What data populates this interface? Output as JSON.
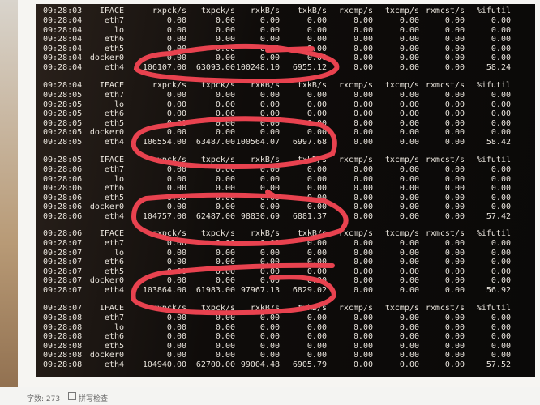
{
  "columns": [
    "IFACE",
    "rxpck/s",
    "txpck/s",
    "rxkB/s",
    "txkB/s",
    "rxcmp/s",
    "txcmp/s",
    "rxmcst/s",
    "%ifutil"
  ],
  "blocks": [
    {
      "header_time": "09:28:03",
      "rows": [
        [
          "09:28:04",
          "eth7",
          "0.00",
          "0.00",
          "0.00",
          "0.00",
          "0.00",
          "0.00",
          "0.00",
          "0.00"
        ],
        [
          "09:28:04",
          "lo",
          "0.00",
          "0.00",
          "0.00",
          "0.00",
          "0.00",
          "0.00",
          "0.00",
          "0.00"
        ],
        [
          "09:28:04",
          "eth6",
          "0.00",
          "0.00",
          "0.00",
          "0.00",
          "0.00",
          "0.00",
          "0.00",
          "0.00"
        ],
        [
          "09:28:04",
          "eth5",
          "0.00",
          "0.00",
          "0.00",
          "0.00",
          "0.00",
          "0.00",
          "0.00",
          "0.00"
        ],
        [
          "09:28:04",
          "docker0",
          "0.00",
          "0.00",
          "0.00",
          "0.00",
          "0.00",
          "0.00",
          "0.00",
          "0.00"
        ],
        [
          "09:28:04",
          "eth4",
          "106107.00",
          "63093.00",
          "100248.10",
          "6955.12",
          "0.00",
          "0.00",
          "0.00",
          "58.24"
        ]
      ]
    },
    {
      "header_time": "09:28:04",
      "rows": [
        [
          "09:28:05",
          "eth7",
          "0.00",
          "0.00",
          "0.00",
          "0.00",
          "0.00",
          "0.00",
          "0.00",
          "0.00"
        ],
        [
          "09:28:05",
          "lo",
          "0.00",
          "0.00",
          "0.00",
          "0.00",
          "0.00",
          "0.00",
          "0.00",
          "0.00"
        ],
        [
          "09:28:05",
          "eth6",
          "0.00",
          "0.00",
          "0.00",
          "0.00",
          "0.00",
          "0.00",
          "0.00",
          "0.00"
        ],
        [
          "09:28:05",
          "eth5",
          "0.00",
          "0.00",
          "0.00",
          "0.00",
          "0.00",
          "0.00",
          "0.00",
          "0.00"
        ],
        [
          "09:28:05",
          "docker0",
          "0.00",
          "0.00",
          "0.00",
          "0.00",
          "0.00",
          "0.00",
          "0.00",
          "0.00"
        ],
        [
          "09:28:05",
          "eth4",
          "106554.00",
          "63487.00",
          "100564.07",
          "6997.68",
          "0.00",
          "0.00",
          "0.00",
          "58.42"
        ]
      ]
    },
    {
      "header_time": "09:28:05",
      "rows": [
        [
          "09:28:06",
          "eth7",
          "0.00",
          "0.00",
          "0.00",
          "0.00",
          "0.00",
          "0.00",
          "0.00",
          "0.00"
        ],
        [
          "09:28:06",
          "lo",
          "0.00",
          "0.00",
          "0.00",
          "0.00",
          "0.00",
          "0.00",
          "0.00",
          "0.00"
        ],
        [
          "09:28:06",
          "eth6",
          "0.00",
          "0.00",
          "0.00",
          "0.00",
          "0.00",
          "0.00",
          "0.00",
          "0.00"
        ],
        [
          "09:28:06",
          "eth5",
          "0.00",
          "0.00",
          "0.00",
          "0.00",
          "0.00",
          "0.00",
          "0.00",
          "0.00"
        ],
        [
          "09:28:06",
          "docker0",
          "0.00",
          "0.00",
          "0.00",
          "0.00",
          "0.00",
          "0.00",
          "0.00",
          "0.00"
        ],
        [
          "09:28:06",
          "eth4",
          "104757.00",
          "62487.00",
          "98830.69",
          "6881.37",
          "0.00",
          "0.00",
          "0.00",
          "57.42"
        ]
      ]
    },
    {
      "header_time": "09:28:06",
      "rows": [
        [
          "09:28:07",
          "eth7",
          "0.00",
          "0.00",
          "0.00",
          "0.00",
          "0.00",
          "0.00",
          "0.00",
          "0.00"
        ],
        [
          "09:28:07",
          "lo",
          "0.00",
          "0.00",
          "0.00",
          "0.00",
          "0.00",
          "0.00",
          "0.00",
          "0.00"
        ],
        [
          "09:28:07",
          "eth6",
          "0.00",
          "0.00",
          "0.00",
          "0.00",
          "0.00",
          "0.00",
          "0.00",
          "0.00"
        ],
        [
          "09:28:07",
          "eth5",
          "0.00",
          "0.00",
          "0.00",
          "0.00",
          "0.00",
          "0.00",
          "0.00",
          "0.00"
        ],
        [
          "09:28:07",
          "docker0",
          "0.00",
          "0.00",
          "0.00",
          "0.00",
          "0.00",
          "0.00",
          "0.00",
          "0.00"
        ],
        [
          "09:28:07",
          "eth4",
          "103864.00",
          "61983.00",
          "97967.13",
          "6829.02",
          "0.00",
          "0.00",
          "0.00",
          "56.92"
        ]
      ]
    },
    {
      "header_time": "09:28:07",
      "rows": [
        [
          "09:28:08",
          "eth7",
          "0.00",
          "0.00",
          "0.00",
          "0.00",
          "0.00",
          "0.00",
          "0.00",
          "0.00"
        ],
        [
          "09:28:08",
          "lo",
          "0.00",
          "0.00",
          "0.00",
          "0.00",
          "0.00",
          "0.00",
          "0.00",
          "0.00"
        ],
        [
          "09:28:08",
          "eth6",
          "0.00",
          "0.00",
          "0.00",
          "0.00",
          "0.00",
          "0.00",
          "0.00",
          "0.00"
        ],
        [
          "09:28:08",
          "eth5",
          "0.00",
          "0.00",
          "0.00",
          "0.00",
          "0.00",
          "0.00",
          "0.00",
          "0.00"
        ],
        [
          "09:28:08",
          "docker0",
          "0.00",
          "0.00",
          "0.00",
          "0.00",
          "0.00",
          "0.00",
          "0.00",
          "0.00"
        ],
        [
          "09:28:08",
          "eth4",
          "104940.00",
          "62700.00",
          "99004.48",
          "6905.79",
          "0.00",
          "0.00",
          "0.00",
          "57.52"
        ]
      ]
    }
  ],
  "status": {
    "word_count": "字数: 273",
    "spellcheck": "拼写检查",
    "spellcheck_icon": "checkbox-icon"
  },
  "annotation_color": "#e8424f"
}
